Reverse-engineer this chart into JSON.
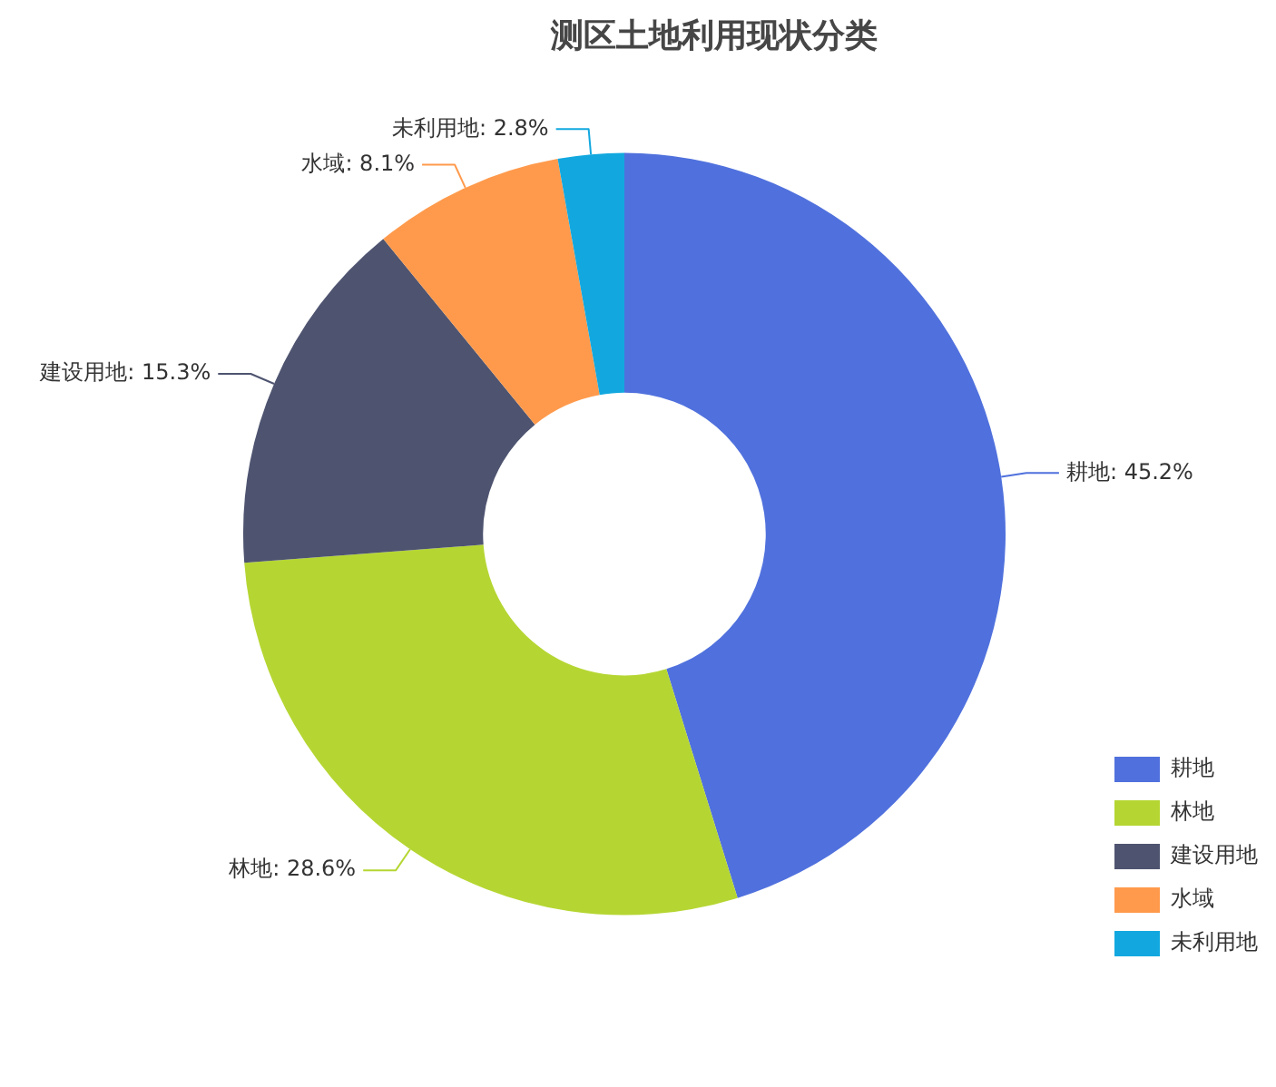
{
  "chart_data": {
    "type": "donut",
    "title": "测区土地利用现状分类",
    "categories": [
      "耕地",
      "林地",
      "建设用地",
      "水域",
      "未利用地"
    ],
    "values": [
      45.2,
      28.6,
      15.3,
      8.1,
      2.8
    ],
    "colors": [
      "#5071dd",
      "#b5d632",
      "#4e5470",
      "#ff9a4c",
      "#12a8df"
    ],
    "value_labels": [
      "耕地: 45.2%",
      "林地: 28.6%",
      "建设用地: 15.3%",
      "水域: 8.1%",
      "未利用地: 2.8%"
    ],
    "legend": "bottom right"
  }
}
